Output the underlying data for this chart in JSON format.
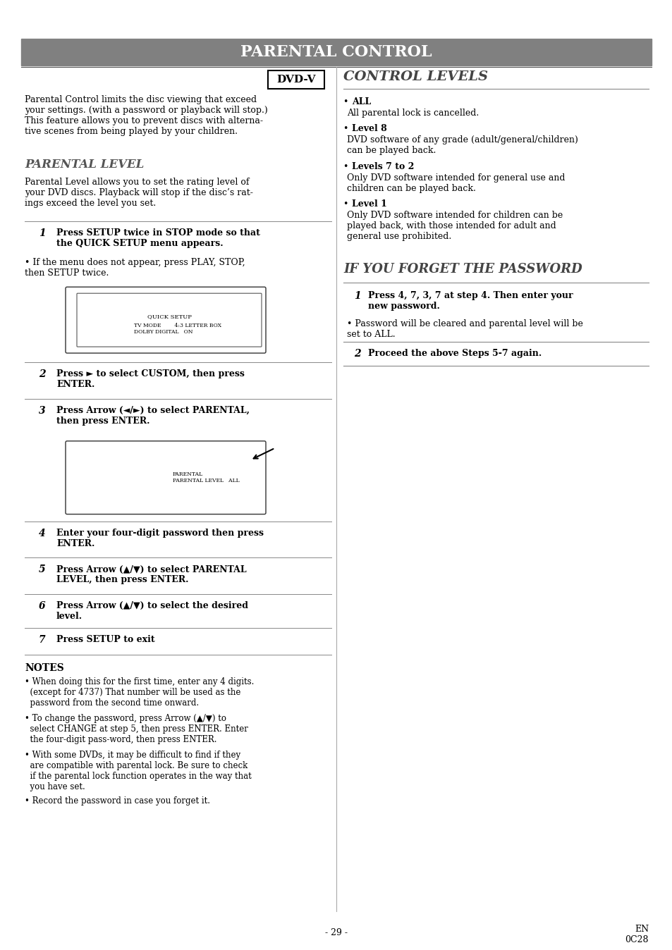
{
  "title": "PARENTAL CONTROL",
  "title_bg": "#808080",
  "title_color": "#ffffff",
  "page_bg": "#ffffff",
  "page_number": "- 29 -",
  "page_code": "EN\n0C28",
  "left_col": {
    "dvd_v_label": "DVD-V",
    "intro_text": "Parental Control limits the disc viewing that exceed\nyour settings. (with a password or playback will stop.)\nThis feature allows you to prevent discs with alterna-\ntive scenes from being played by your children.",
    "section1_title": "PARENTAL LEVEL",
    "section1_body": "Parental Level allows you to set the rating level of\nyour DVD discs. Playback will stop if the disc’s rat-\nings exceed the level you set.",
    "steps": [
      {
        "num": "1",
        "bold_text": "Press SETUP twice in STOP mode so that\nthe QUICK SETUP menu appears.",
        "extra": "• If the menu does not appear, press PLAY, STOP,\nthen SETUP twice."
      },
      {
        "num": "2",
        "bold_text": "Press ► to select CUSTOM, then press\nENTER.",
        "extra": ""
      },
      {
        "num": "3",
        "bold_text": "Press Arrow (◄/►) to select PARENTAL,\nthen press ENTER.",
        "extra": ""
      },
      {
        "num": "4",
        "bold_text": "Enter your four-digit password then press\nENTER.",
        "extra": ""
      },
      {
        "num": "5",
        "bold_text": "Press Arrow (▲/▼) to select PARENTAL\nLEVEL, then press ENTER.",
        "extra": ""
      },
      {
        "num": "6",
        "bold_text": "Press Arrow (▲/▼) to select the desired\nlevel.",
        "extra": ""
      },
      {
        "num": "7",
        "bold_text": "Press SETUP to exit",
        "extra": ""
      }
    ],
    "notes_title": "NOTES",
    "notes": [
      "• When doing this for the first time, enter any 4 digits.\n  (except for 4737) That number will be used as the\n  password from the second time onward.",
      "• To change the password, press Arrow (▲/▼) to\n  select CHANGE at step 5, then press ENTER. Enter\n  the four-digit pass-word, then press ENTER.",
      "• With some DVDs, it may be difficult to find if they\n  are compatible with parental lock. Be sure to check\n  if the parental lock function operates in the way that\n  you have set.",
      "• Record the password in case you forget it."
    ]
  },
  "right_col": {
    "section2_title": "CONTROL LEVELS",
    "control_levels": [
      {
        "label": "ALL",
        "text": "All parental lock is cancelled."
      },
      {
        "label": "Level 8",
        "text": "DVD software of any grade (adult/general/children)\ncan be played back."
      },
      {
        "label": "Levels 7 to 2",
        "text": "Only DVD software intended for general use and\nchildren can be played back."
      },
      {
        "label": "Level 1",
        "text": "Only DVD software intended for children can be\nplayed back, with those intended for adult and\ngeneral use prohibited."
      }
    ],
    "section3_title": "IF YOU FORGET THE PASSWORD",
    "forget_steps": [
      {
        "num": "1",
        "bold_text": "Press 4, 7, 3, 7 at step 4. Then enter your\nnew password.",
        "extra": "• Password will be cleared and parental level will be\nset to ALL."
      },
      {
        "num": "2",
        "bold_text": "Proceed the above Steps 5-7 again.",
        "extra": ""
      }
    ]
  }
}
